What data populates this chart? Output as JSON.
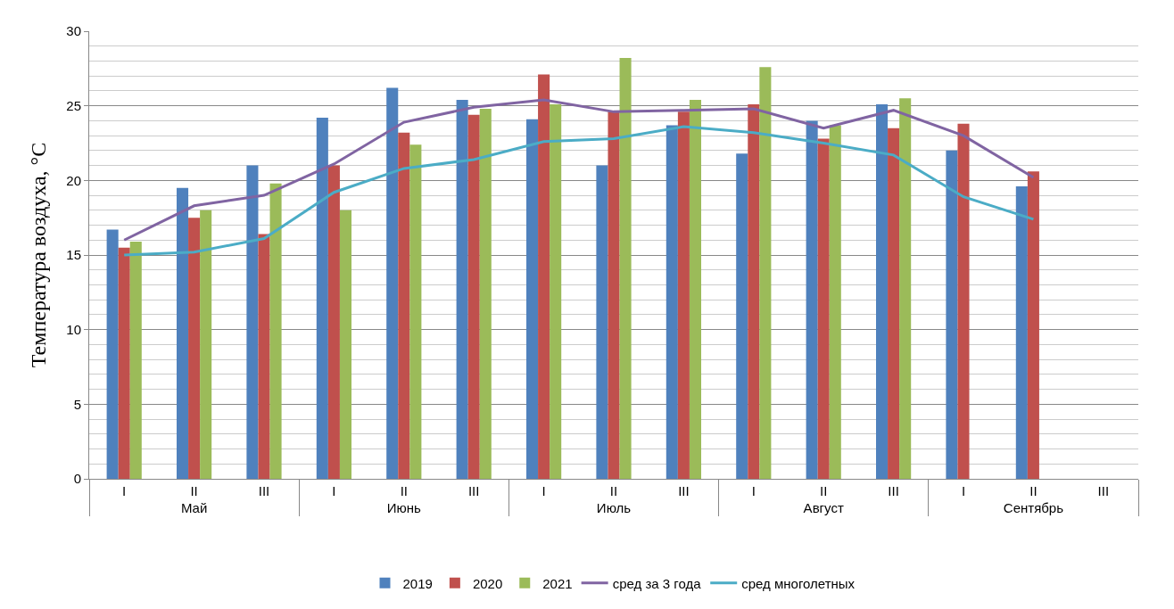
{
  "chart_data": {
    "type": "bar",
    "ylabel": "Температура воздуха, °C",
    "categories": [
      "I",
      "II",
      "III",
      "I",
      "II",
      "III",
      "I",
      "II",
      "III",
      "I",
      "II",
      "III",
      "I",
      "II",
      "III"
    ],
    "annotations": [
      "Май",
      "Июнь",
      "Июль",
      "Август",
      "Сентябрь"
    ],
    "series": [
      {
        "name": "2019",
        "color": "#4f81bd",
        "values": [
          16.7,
          19.5,
          21.0,
          24.2,
          26.2,
          25.4,
          24.1,
          21.0,
          23.7,
          21.8,
          24.0,
          25.1,
          22.0,
          19.6,
          null
        ]
      },
      {
        "name": "2020",
        "color": "#c0504d",
        "values": [
          15.5,
          17.5,
          16.4,
          21.0,
          23.2,
          24.4,
          27.1,
          24.6,
          24.6,
          25.1,
          22.8,
          23.5,
          23.8,
          20.6,
          null
        ]
      },
      {
        "name": "2021",
        "color": "#9bbb59",
        "values": [
          15.9,
          18.0,
          19.8,
          18.0,
          22.4,
          24.8,
          25.1,
          28.2,
          25.4,
          27.6,
          23.7,
          25.5,
          null,
          null,
          null
        ]
      },
      {
        "name": "сред за 3 года",
        "type": "line",
        "color": "#8064a2",
        "values": [
          16.0,
          18.3,
          19.0,
          21.1,
          23.9,
          24.9,
          25.4,
          24.6,
          24.7,
          24.8,
          23.5,
          24.7,
          23.0,
          20.2,
          null
        ]
      },
      {
        "name": "сред многолетных",
        "type": "line",
        "color": "#4bacc6",
        "values": [
          15.0,
          15.2,
          16.1,
          19.2,
          20.8,
          21.4,
          22.6,
          22.8,
          23.6,
          23.2,
          22.5,
          21.7,
          18.9,
          17.4,
          null
        ]
      }
    ],
    "ylim": [
      0,
      30
    ],
    "yticks": [
      0,
      5,
      10,
      15,
      20,
      25,
      30
    ],
    "grid": "y",
    "legend": "bottom"
  }
}
